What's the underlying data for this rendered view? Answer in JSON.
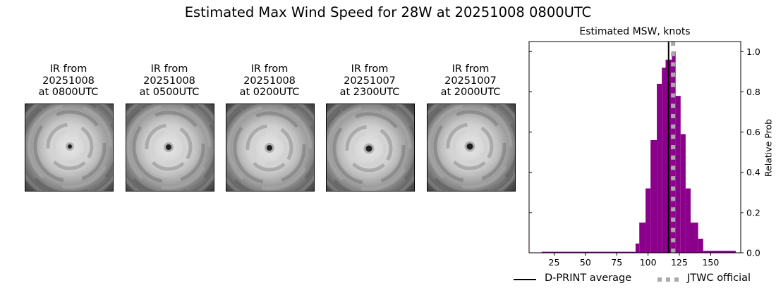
{
  "figure": {
    "suptitle": "Estimated Max Wind Speed for 28W at 20251008 0800UTC"
  },
  "ir_panels": [
    {
      "title": "IR from\n20251008\nat 0800UTC",
      "eye": [
        63,
        60
      ],
      "eye_r": 3
    },
    {
      "title": "IR from\n20251008\nat 0500UTC",
      "eye": [
        60,
        61
      ],
      "eye_r": 4
    },
    {
      "title": "IR from\n20251008\nat 0200UTC",
      "eye": [
        61,
        62
      ],
      "eye_r": 4
    },
    {
      "title": "IR from\n20251007\nat 2300UTC",
      "eye": [
        60,
        63
      ],
      "eye_r": 4.5
    },
    {
      "title": "IR from\n20251007\nat 2000UTC",
      "eye": [
        60,
        60
      ],
      "eye_r": 4.5
    }
  ],
  "colors": {
    "bar": "#8b008b",
    "mean_line": "#000000",
    "official_line": "#aaaaaa"
  },
  "legend": {
    "mean_label": "D-PRINT average",
    "official_label": "JTWC official"
  },
  "chart_data": {
    "type": "bar",
    "title": "Estimated MSW, knots",
    "xlabel": "",
    "ylabel": "Relative Prob",
    "xlim": [
      5,
      174
    ],
    "ylim": [
      0,
      1.05
    ],
    "xticks": [
      25,
      50,
      75,
      100,
      125,
      150
    ],
    "yticks": [
      0.0,
      0.2,
      0.4,
      0.6,
      0.8,
      1.0
    ],
    "ytick_labels": [
      "0.0",
      "0.2",
      "0.4",
      "0.6",
      "0.8",
      "1.0"
    ],
    "yaxis_position": "right",
    "grid": false,
    "bins": [
      {
        "x0": 15,
        "x1": 90,
        "value": 0.005
      },
      {
        "x0": 90,
        "x1": 93,
        "value": 0.046
      },
      {
        "x0": 93,
        "x1": 98,
        "value": 0.15
      },
      {
        "x0": 98,
        "x1": 102,
        "value": 0.32
      },
      {
        "x0": 102,
        "x1": 107,
        "value": 0.56
      },
      {
        "x0": 107,
        "x1": 111,
        "value": 0.84
      },
      {
        "x0": 111,
        "x1": 114,
        "value": 0.92
      },
      {
        "x0": 114,
        "x1": 116,
        "value": 0.96
      },
      {
        "x0": 116,
        "x1": 119,
        "value": 0.96
      },
      {
        "x0": 119,
        "x1": 122,
        "value": 1.0
      },
      {
        "x0": 122,
        "x1": 126,
        "value": 0.78
      },
      {
        "x0": 126,
        "x1": 130,
        "value": 0.59
      },
      {
        "x0": 130,
        "x1": 134,
        "value": 0.32
      },
      {
        "x0": 134,
        "x1": 140,
        "value": 0.15
      },
      {
        "x0": 140,
        "x1": 144,
        "value": 0.07
      },
      {
        "x0": 144,
        "x1": 170,
        "value": 0.01
      }
    ],
    "lines": [
      {
        "name": "D-PRINT average",
        "x": 116.4,
        "style": "solid"
      },
      {
        "name": "JTWC official",
        "x": 120,
        "style": "dotted"
      }
    ],
    "legend_position": "bottom-right"
  }
}
